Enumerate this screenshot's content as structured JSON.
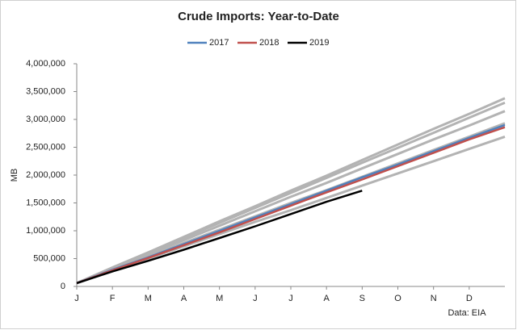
{
  "chart_data": {
    "type": "line",
    "title": "Crude Imports: Year-to-Date",
    "y_label": "MB",
    "annotation": "Data: EIA",
    "x": [
      0,
      1,
      2,
      3,
      4,
      5,
      6,
      7,
      8,
      9,
      10,
      11,
      12
    ],
    "xlim": [
      0,
      12
    ],
    "xticks": [
      {
        "value": 0,
        "label": "J"
      },
      {
        "value": 1,
        "label": "F"
      },
      {
        "value": 2,
        "label": "M"
      },
      {
        "value": 3,
        "label": "A"
      },
      {
        "value": 4,
        "label": "M"
      },
      {
        "value": 5,
        "label": "J"
      },
      {
        "value": 6,
        "label": "J"
      },
      {
        "value": 7,
        "label": "A"
      },
      {
        "value": 8,
        "label": "S"
      },
      {
        "value": 9,
        "label": "O"
      },
      {
        "value": 10,
        "label": "N"
      },
      {
        "value": 11,
        "label": "D"
      }
    ],
    "ylim": [
      0,
      4000000
    ],
    "yticks": [
      0,
      {
        "value": 500000,
        "label": "500,000"
      },
      {
        "value": 1000000,
        "label": "1,000,000"
      },
      {
        "value": 1500000,
        "label": "1,500,000"
      },
      {
        "value": 2000000,
        "label": "2,000,000"
      },
      {
        "value": 2500000,
        "label": "2,500,000"
      },
      {
        "value": 3000000,
        "label": "3,000,000"
      },
      {
        "value": 3500000,
        "label": "3,500,000"
      },
      {
        "value": 4000000,
        "label": "4,000,000"
      }
    ],
    "legend": "top",
    "series": [
      {
        "color": "#b3b3b3",
        "values": [
          60000,
          340000,
          610000,
          890000,
          1170000,
          1440000,
          1720000,
          1990000,
          2270000,
          2550000,
          2830000,
          3100000,
          3380000
        ]
      },
      {
        "color": "#b3b3b3",
        "values": [
          60000,
          330000,
          600000,
          870000,
          1140000,
          1410000,
          1680000,
          1950000,
          2220000,
          2490000,
          2760000,
          3030000,
          3300000
        ]
      },
      {
        "color": "#b3b3b3",
        "values": [
          60000,
          320000,
          580000,
          830000,
          1090000,
          1350000,
          1610000,
          1860000,
          2120000,
          2380000,
          2640000,
          2890000,
          3150000
        ]
      },
      {
        "color": "#b3b3b3",
        "values": [
          60000,
          300000,
          540000,
          780000,
          1020000,
          1260000,
          1500000,
          1730000,
          1970000,
          2210000,
          2450000,
          2690000,
          2930000
        ]
      },
      {
        "color": "#b3b3b3",
        "values": [
          60000,
          280000,
          500000,
          720000,
          940000,
          1160000,
          1370000,
          1590000,
          1810000,
          2030000,
          2250000,
          2470000,
          2690000
        ]
      },
      {
        "name": "2017",
        "color": "#4f81bd",
        "values": [
          60000,
          300000,
          520000,
          760000,
          1000000,
          1240000,
          1480000,
          1720000,
          1960000,
          2190000,
          2430000,
          2670000,
          2900000
        ]
      },
      {
        "name": "2018",
        "color": "#c0504d",
        "values": [
          60000,
          290000,
          510000,
          740000,
          970000,
          1210000,
          1450000,
          1690000,
          1920000,
          2160000,
          2400000,
          2640000,
          2860000
        ]
      },
      {
        "name": "2019",
        "color": "#000000",
        "values": [
          60000,
          270000,
          460000,
          660000,
          870000,
          1080000,
          1300000,
          1520000,
          1720000,
          null,
          null,
          null,
          null
        ]
      }
    ]
  }
}
